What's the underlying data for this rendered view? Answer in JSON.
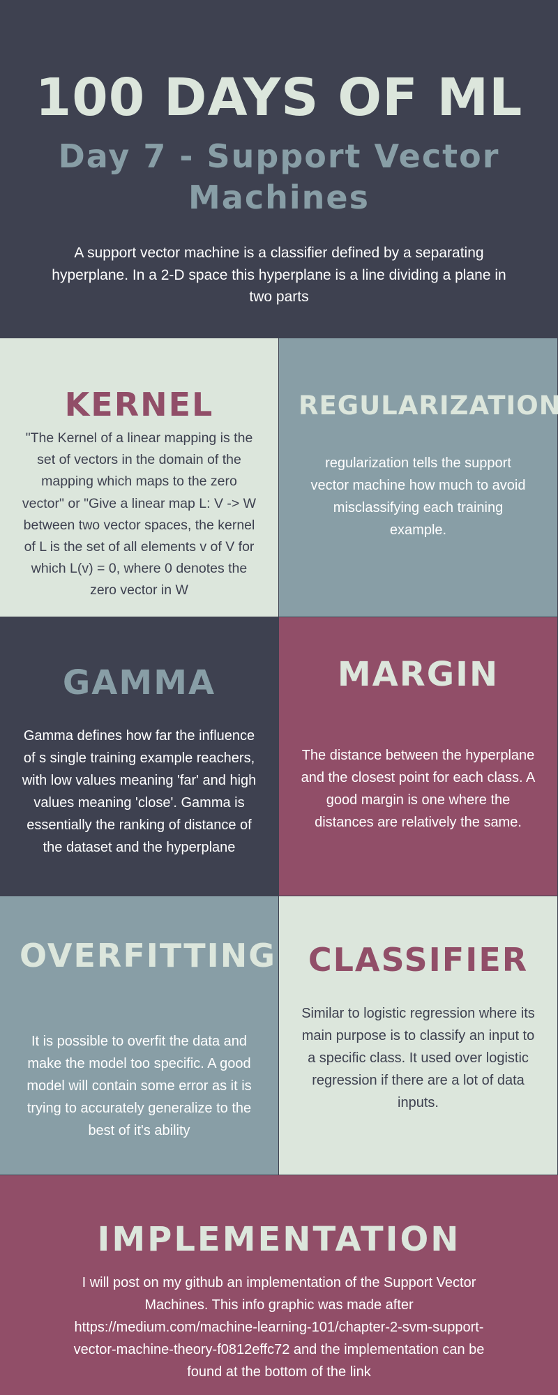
{
  "header": {
    "title": "100 DAYS OF ML",
    "subtitle": "Day 7 - Support Vector Machines",
    "intro": "A support vector machine is a classifier defined by a separating hyperplane. In a 2-D space this hyperplane is a line dividing a plane in two parts"
  },
  "sections": {
    "kernel": {
      "title": "KERNEL",
      "body": "\"The Kernel of a linear mapping is the set of vectors in the domain of the mapping which maps to the zero vector\" or \"Give a linear map L: V -> W between two vector spaces, the kernel of L is the set of all elements v of V for which L(v) = 0, where 0 denotes the zero vector in W"
    },
    "regularization": {
      "title": "REGULARIZATION",
      "body": "regularization tells the support vector machine how much to avoid misclassifying each training example."
    },
    "gamma": {
      "title": "GAMMA",
      "body": "Gamma defines how far the influence of s single training example reachers, with low values meaning 'far' and high values meaning 'close'. Gamma is essentially the ranking of distance of the dataset and the hyperplane"
    },
    "margin": {
      "title": "MARGIN",
      "body": "The distance between the hyperplane and the closest point for each class. A good margin is one where the distances are relatively the same."
    },
    "overfitting": {
      "title": "OVERFITTING",
      "body": "It is possible to overfit the data and make the model too specific. A good model will contain some error as it is trying to accurately generalize to the best of it's ability"
    },
    "classifier": {
      "title": "CLASSIFIER",
      "body": "Similar to logistic regression where its main purpose is to classify an input to a specific class. It used over logistic regression if there are a lot of data inputs."
    }
  },
  "footer": {
    "title": "IMPLEMENTATION",
    "body": "I will post on my github an implementation of the Support Vector Machines. This info graphic was made after https://medium.com/machine-learning-101/chapter-2-svm-support-vector-machine-theory-f0812effc72 and the implementation can be found at the bottom of the link"
  },
  "colors": {
    "dark": "#3e4150",
    "slate": "#889ea6",
    "light": "#dce6dc",
    "wine": "#914e68"
  }
}
